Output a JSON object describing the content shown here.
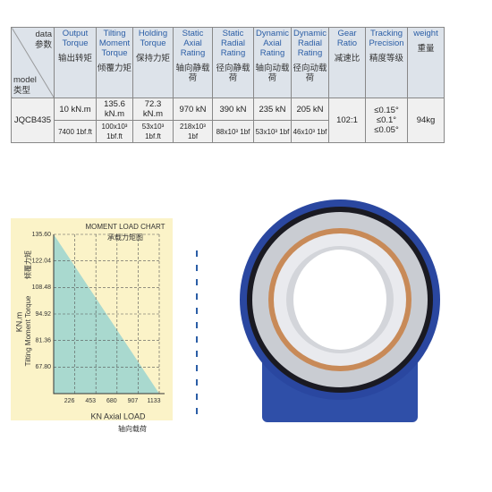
{
  "table": {
    "corner_top": "data",
    "corner_top_cn": "参数",
    "corner_bottom": "model",
    "corner_bottom_cn": "类型",
    "columns": [
      {
        "en": "Output Torque",
        "cn": "输出转矩"
      },
      {
        "en": "Tilting Moment Torque",
        "cn": "倾覆力矩"
      },
      {
        "en": "Holding Torque",
        "cn": "保持力矩"
      },
      {
        "en": "Static Axial Rating",
        "cn": "轴向静载荷"
      },
      {
        "en": "Static Radial Rating",
        "cn": "径向静载荷"
      },
      {
        "en": "Dynamic Axial Rating",
        "cn": "轴向动载荷"
      },
      {
        "en": "Dynamic Radial Rating",
        "cn": "径向动载荷"
      },
      {
        "en": "Gear Ratio",
        "cn": "减速比"
      },
      {
        "en": "Tracking Precision",
        "cn": "精度等级"
      },
      {
        "en": "weight",
        "cn": "重量"
      }
    ],
    "model": "JQCB435",
    "row1": [
      "10 kN.m",
      "135.6 kN.m",
      "72.3 kN.m",
      "970 kN",
      "390 kN",
      "235 kN",
      "205 kN"
    ],
    "row2": [
      "7400 1bf.ft",
      "100x10³ 1bf.ft",
      "53x10³ 1bf.ft",
      "218x10³ 1bf",
      "88x10³ 1bf",
      "53x10³ 1bf",
      "46x10³ 1bf"
    ],
    "gear_ratio": "102:1",
    "precision": [
      "≤0.15°",
      "≤0.1°",
      "≤0.05°"
    ],
    "weight": "94kg"
  },
  "chart_data": {
    "type": "area",
    "title": "MOMENT LOAD CHART",
    "subtitle": "承载力矩图",
    "y_label_unit": "KN.m",
    "y_label": "Tilting Moment Torque",
    "y_label_cn": "倾覆力矩",
    "x_label": "KN  Axial LOAD",
    "x_label_cn": "轴向载荷",
    "x": [
      0,
      1133
    ],
    "values": [
      135.6,
      54.24
    ],
    "color": "#a9d9cf",
    "xlim": [
      0,
      1133
    ],
    "ylim": [
      54.24,
      135.6
    ],
    "xticks": [
      226,
      453,
      680,
      907,
      1133
    ],
    "yticks": [
      {
        "value": 67.8,
        "label": "67.80"
      },
      {
        "value": 81.36,
        "label": "81.36"
      },
      {
        "value": 94.92,
        "label": "94.92"
      },
      {
        "value": 108.48,
        "label": "108.48"
      },
      {
        "value": 122.04,
        "label": "122.04"
      },
      {
        "value": 135.6,
        "label": "135.60"
      }
    ],
    "grid": true
  }
}
